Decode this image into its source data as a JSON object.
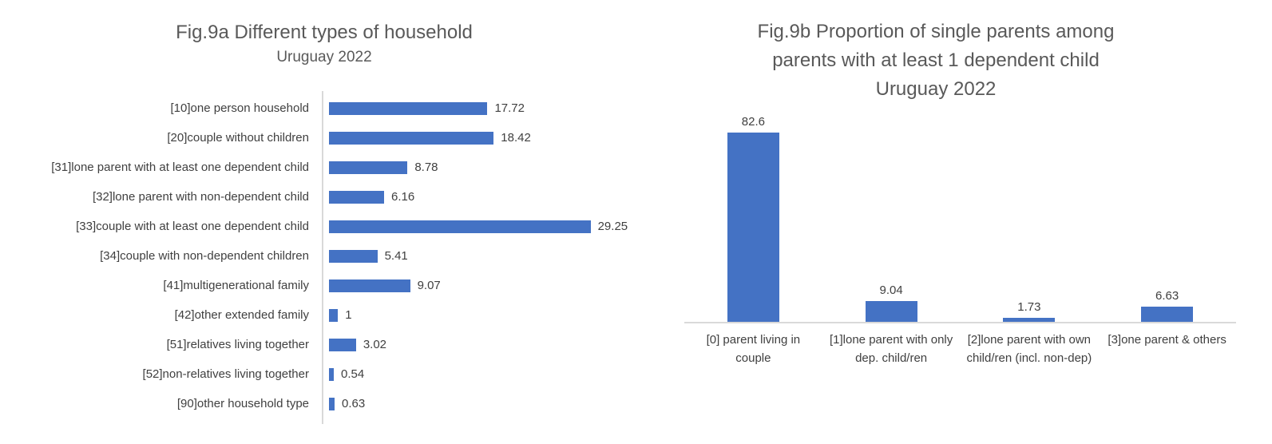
{
  "colors": {
    "bar": "#4472C4",
    "title_text": "#595959",
    "label_text": "#404040",
    "axis_line": "#D9D9D9",
    "background": "#FFFFFF"
  },
  "fig9a": {
    "title": "Fig.9a Different types of household",
    "subtitle": "Uruguay 2022"
  },
  "fig9b": {
    "title_line1": "Fig.9b Proportion of single parents among",
    "title_line2": "parents with at least 1 dependent child",
    "subtitle": "Uruguay 2022"
  },
  "chart_data": [
    {
      "type": "bar",
      "orientation": "horizontal",
      "title": "Fig.9a Different types of household",
      "subtitle": "Uruguay 2022",
      "categories": [
        "[10]one person household",
        "[20]couple without children",
        "[31]lone parent with at least one dependent child",
        "[32]lone parent with non-dependent child",
        "[33]couple with at least one dependent child",
        "[34]couple with non-dependent children",
        "[41]multigenerational family",
        "[42]other extended family",
        "[51]relatives living together",
        "[52]non-relatives living together",
        "[90]other household type"
      ],
      "values": [
        17.72,
        18.42,
        8.78,
        6.16,
        29.25,
        5.41,
        9.07,
        1,
        3.02,
        0.54,
        0.63
      ],
      "labels": [
        "17.72",
        "18.42",
        "8.78",
        "6.16",
        "29.25",
        "5.41",
        "9.07",
        "1",
        "3.02",
        "0.54",
        "0.63"
      ],
      "xlabel": "",
      "ylabel": "",
      "xlim": [
        0,
        33
      ],
      "grid": false,
      "legend": false,
      "data_labels": "outside-end",
      "bar_color": "#4472C4"
    },
    {
      "type": "bar",
      "orientation": "vertical",
      "title": "Fig.9b Proportion of single parents among parents with at least 1 dependent child",
      "subtitle": "Uruguay 2022",
      "categories": [
        "[0] parent living in couple",
        "[1]lone parent with only dep. child/ren",
        "[2]lone parent with own child/ren (incl. non-dep)",
        "[3]one parent & others"
      ],
      "values": [
        82.6,
        9.04,
        1.73,
        6.63
      ],
      "labels": [
        "82.6",
        "9.04",
        "1.73",
        "6.63"
      ],
      "xlabel": "",
      "ylabel": "",
      "ylim": [
        0,
        90
      ],
      "grid": false,
      "legend": false,
      "data_labels": "outside-end",
      "bar_color": "#4472C4"
    }
  ]
}
